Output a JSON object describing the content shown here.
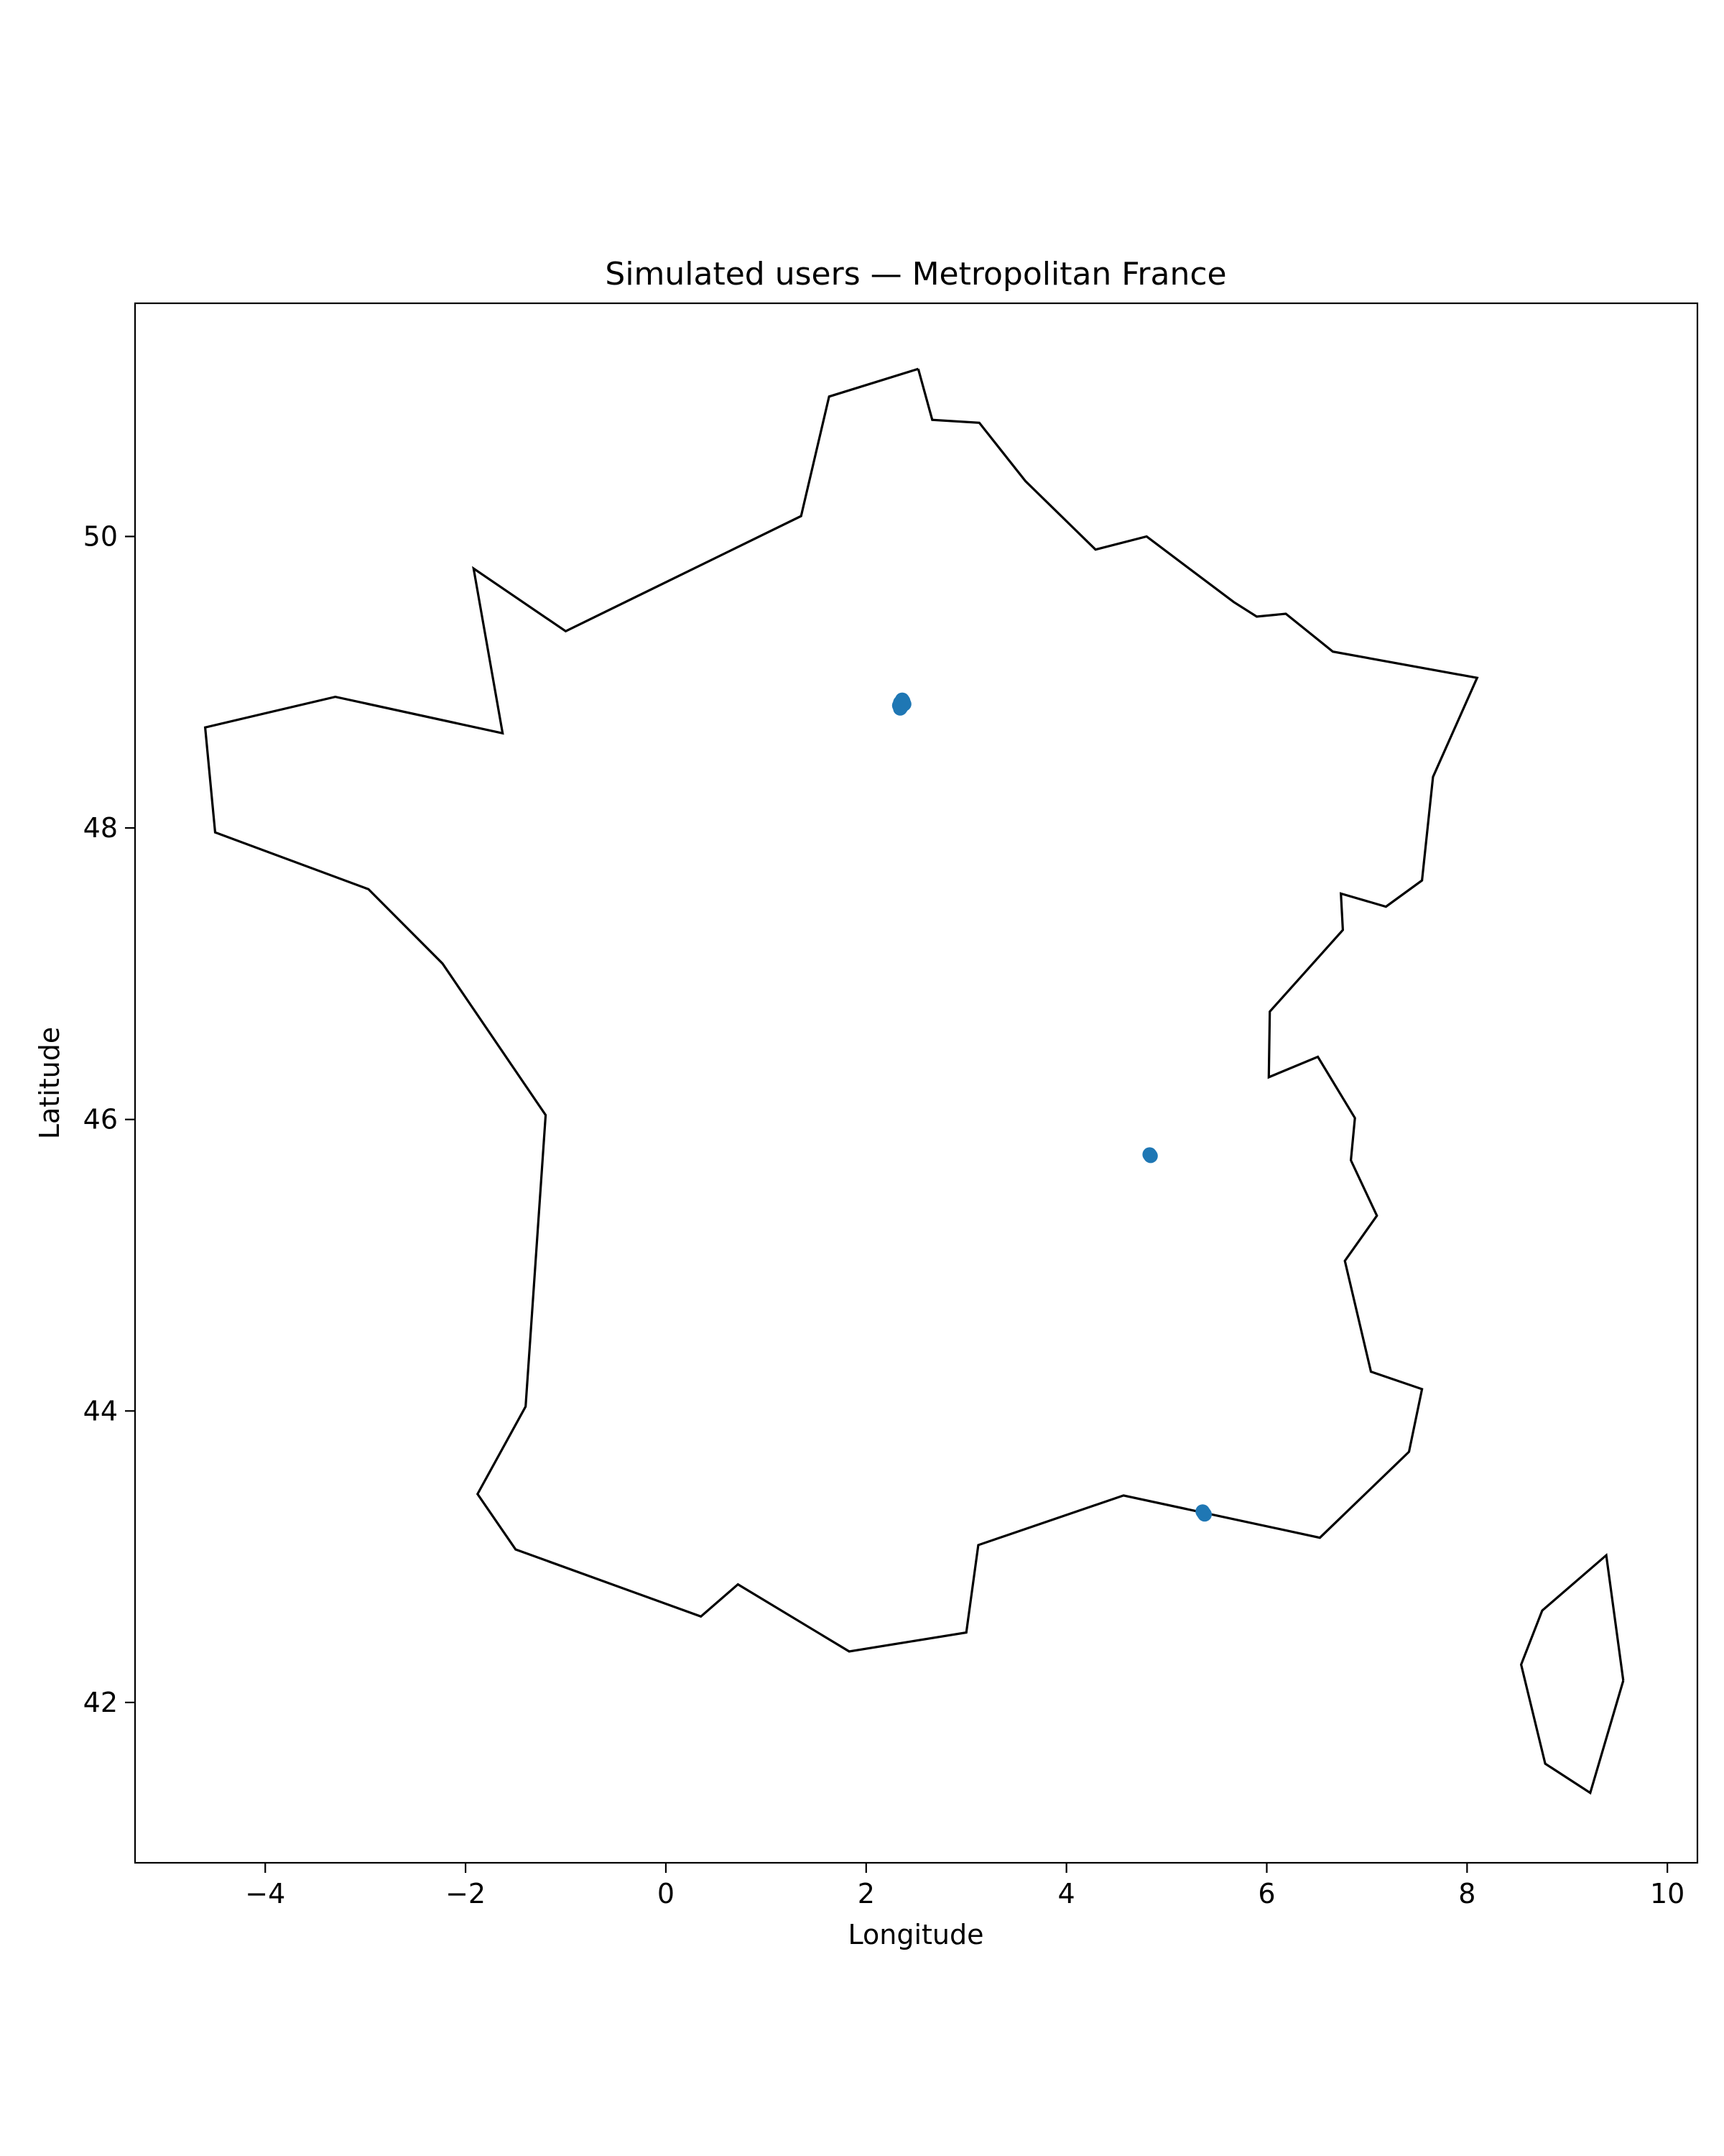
{
  "chart_data": {
    "type": "scatter",
    "title": "Simulated users — Metropolitan France",
    "xlabel": "Longitude",
    "ylabel": "Latitude",
    "xlim": [
      -5.3,
      10.3
    ],
    "ylim": [
      40.9,
      51.6
    ],
    "xticks": [
      -4,
      -2,
      0,
      2,
      4,
      6,
      8,
      10
    ],
    "yticks": [
      42,
      44,
      46,
      48,
      50
    ],
    "xtick_labels": [
      "−4",
      "−2",
      "0",
      "2",
      "4",
      "6",
      "8",
      "10"
    ],
    "ytick_labels": [
      "42",
      "44",
      "46",
      "48",
      "50"
    ],
    "grid": false,
    "legend": "none",
    "point_color": "#1f77b4",
    "outline_color": "#000000",
    "points": [
      {
        "lon": 2.34,
        "lat": 48.86
      },
      {
        "lon": 2.36,
        "lat": 48.85
      },
      {
        "lon": 2.35,
        "lat": 48.83
      },
      {
        "lon": 2.37,
        "lat": 48.87
      },
      {
        "lon": 2.33,
        "lat": 48.84
      },
      {
        "lon": 2.36,
        "lat": 48.88
      },
      {
        "lon": 2.38,
        "lat": 48.85
      },
      {
        "lon": 2.34,
        "lat": 48.82
      },
      {
        "lon": 4.83,
        "lat": 45.76
      },
      {
        "lon": 4.84,
        "lat": 45.75
      },
      {
        "lon": 5.37,
        "lat": 43.3
      },
      {
        "lon": 5.38,
        "lat": 43.29
      },
      {
        "lon": 5.36,
        "lat": 43.31
      }
    ],
    "outlines": [
      [
        [
          2.52,
          51.15
        ],
        [
          1.63,
          50.96
        ],
        [
          1.35,
          50.14
        ],
        [
          -1.0,
          49.35
        ],
        [
          -1.92,
          49.78
        ],
        [
          -1.63,
          48.65
        ],
        [
          -3.3,
          48.9
        ],
        [
          -4.6,
          48.69
        ],
        [
          -4.5,
          47.97
        ],
        [
          -2.97,
          47.58
        ],
        [
          -2.23,
          47.07
        ],
        [
          -1.2,
          46.03
        ],
        [
          -1.4,
          44.03
        ],
        [
          -1.88,
          43.43
        ],
        [
          -1.5,
          43.05
        ],
        [
          0.35,
          42.59
        ],
        [
          0.72,
          42.81
        ],
        [
          1.83,
          42.35
        ],
        [
          3.0,
          42.48
        ],
        [
          3.12,
          43.08
        ],
        [
          4.57,
          43.42
        ],
        [
          6.53,
          43.13
        ],
        [
          7.42,
          43.72
        ],
        [
          7.55,
          44.15
        ],
        [
          7.04,
          44.27
        ],
        [
          6.78,
          45.03
        ],
        [
          7.1,
          45.34
        ],
        [
          6.84,
          45.72
        ],
        [
          6.88,
          46.01
        ],
        [
          6.51,
          46.43
        ],
        [
          6.02,
          46.29
        ],
        [
          6.03,
          46.74
        ],
        [
          6.76,
          47.3
        ],
        [
          6.74,
          47.55
        ],
        [
          7.19,
          47.46
        ],
        [
          7.55,
          47.64
        ],
        [
          7.66,
          48.35
        ],
        [
          8.1,
          49.03
        ],
        [
          6.66,
          49.21
        ],
        [
          6.19,
          49.47
        ],
        [
          5.9,
          49.45
        ],
        [
          5.67,
          49.55
        ],
        [
          4.8,
          50.0
        ],
        [
          4.29,
          49.91
        ],
        [
          3.59,
          50.38
        ],
        [
          3.13,
          50.78
        ],
        [
          2.66,
          50.8
        ],
        [
          2.52,
          51.15
        ]
      ],
      [
        [
          9.56,
          42.15
        ],
        [
          9.23,
          41.38
        ],
        [
          8.78,
          41.58
        ],
        [
          8.54,
          42.26
        ],
        [
          8.75,
          42.63
        ],
        [
          9.39,
          43.01
        ],
        [
          9.56,
          42.15
        ]
      ]
    ]
  }
}
